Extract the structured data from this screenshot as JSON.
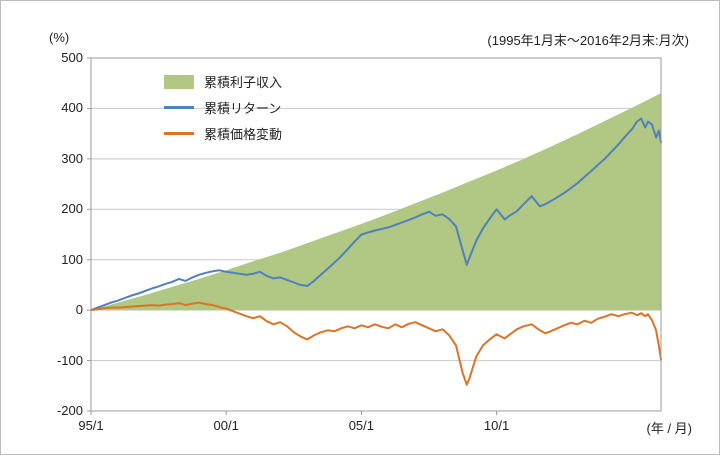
{
  "chart_data": {
    "type": "area+line",
    "title": "",
    "annotation": "(1995年1月末～2016年2月末:月次)",
    "ylabel": "(%)",
    "xlabel": "(年 / 月)",
    "ylim": [
      -200,
      500
    ],
    "xlim": [
      0,
      21.083
    ],
    "x_unit": "years since 1995/1 (monthly series)",
    "grid": true,
    "legend_position": "inside-top-left",
    "yticks": [
      500,
      400,
      300,
      200,
      100,
      0,
      -100,
      -200
    ],
    "xticks": [
      {
        "t": 0,
        "label": "95/1"
      },
      {
        "t": 5,
        "label": "00/1"
      },
      {
        "t": 10,
        "label": "05/1"
      },
      {
        "t": 15,
        "label": "10/1"
      }
    ],
    "colors": {
      "grid": "#c9c9c9",
      "axis": "#9b9b9b",
      "text": "#222222",
      "area_green": "#b0c884",
      "line_blue": "#4f81bd",
      "line_orange": "#db7426"
    },
    "series": [
      {
        "name": "累積利子収入",
        "type": "area",
        "color": "#b0c884",
        "points": [
          [
            0,
            0
          ],
          [
            1,
            15
          ],
          [
            2,
            30
          ],
          [
            3,
            46
          ],
          [
            4,
            62
          ],
          [
            5,
            79
          ],
          [
            6,
            97
          ],
          [
            7,
            114
          ],
          [
            8,
            133
          ],
          [
            9,
            152
          ],
          [
            10,
            171
          ],
          [
            11,
            191
          ],
          [
            12,
            212
          ],
          [
            13,
            233
          ],
          [
            14,
            255
          ],
          [
            15,
            277
          ],
          [
            16,
            300
          ],
          [
            17,
            324
          ],
          [
            18,
            349
          ],
          [
            19,
            375
          ],
          [
            20,
            401
          ],
          [
            21,
            428
          ],
          [
            21.083,
            430
          ]
        ]
      },
      {
        "name": "累積リターン",
        "type": "line",
        "color": "#4f81bd",
        "points": [
          [
            0,
            0
          ],
          [
            0.25,
            5
          ],
          [
            0.5,
            10
          ],
          [
            0.75,
            15
          ],
          [
            1,
            19
          ],
          [
            1.25,
            24
          ],
          [
            1.5,
            29
          ],
          [
            1.75,
            33
          ],
          [
            2,
            38
          ],
          [
            2.25,
            43
          ],
          [
            2.5,
            47
          ],
          [
            2.75,
            52
          ],
          [
            3,
            56
          ],
          [
            3.25,
            62
          ],
          [
            3.5,
            58
          ],
          [
            3.75,
            65
          ],
          [
            4,
            70
          ],
          [
            4.25,
            74
          ],
          [
            4.5,
            77
          ],
          [
            4.75,
            79
          ],
          [
            5,
            76
          ],
          [
            5.25,
            74
          ],
          [
            5.5,
            72
          ],
          [
            5.75,
            70
          ],
          [
            6,
            72
          ],
          [
            6.25,
            76
          ],
          [
            6.5,
            68
          ],
          [
            6.75,
            63
          ],
          [
            7,
            65
          ],
          [
            7.25,
            60
          ],
          [
            7.5,
            55
          ],
          [
            7.75,
            50
          ],
          [
            8,
            48
          ],
          [
            8.25,
            58
          ],
          [
            8.5,
            70
          ],
          [
            8.75,
            82
          ],
          [
            9,
            94
          ],
          [
            9.25,
            107
          ],
          [
            9.5,
            121
          ],
          [
            9.75,
            136
          ],
          [
            10,
            150
          ],
          [
            10.25,
            154
          ],
          [
            10.5,
            158
          ],
          [
            10.75,
            161
          ],
          [
            11,
            164
          ],
          [
            11.25,
            169
          ],
          [
            11.5,
            174
          ],
          [
            11.75,
            179
          ],
          [
            12,
            184
          ],
          [
            12.25,
            190
          ],
          [
            12.5,
            195
          ],
          [
            12.75,
            187
          ],
          [
            13,
            190
          ],
          [
            13.25,
            181
          ],
          [
            13.5,
            166
          ],
          [
            13.75,
            118
          ],
          [
            13.9,
            90
          ],
          [
            14,
            104
          ],
          [
            14.25,
            138
          ],
          [
            14.5,
            162
          ],
          [
            14.75,
            182
          ],
          [
            15,
            200
          ],
          [
            15.3,
            180
          ],
          [
            15.5,
            188
          ],
          [
            15.75,
            196
          ],
          [
            16,
            210
          ],
          [
            16.3,
            226
          ],
          [
            16.6,
            206
          ],
          [
            16.8,
            210
          ],
          [
            17,
            216
          ],
          [
            17.25,
            224
          ],
          [
            17.5,
            232
          ],
          [
            17.75,
            242
          ],
          [
            18,
            252
          ],
          [
            18.25,
            264
          ],
          [
            18.5,
            276
          ],
          [
            18.75,
            288
          ],
          [
            19,
            300
          ],
          [
            19.25,
            314
          ],
          [
            19.5,
            328
          ],
          [
            19.75,
            344
          ],
          [
            20,
            358
          ],
          [
            20.2,
            374
          ],
          [
            20.35,
            380
          ],
          [
            20.5,
            362
          ],
          [
            20.6,
            374
          ],
          [
            20.75,
            368
          ],
          [
            20.9,
            342
          ],
          [
            21,
            356
          ],
          [
            21.083,
            333
          ]
        ]
      },
      {
        "name": "累積価格変動",
        "type": "line",
        "color": "#db7426",
        "points": [
          [
            0,
            0
          ],
          [
            0.25,
            2
          ],
          [
            0.5,
            4
          ],
          [
            0.75,
            5
          ],
          [
            1,
            5
          ],
          [
            1.25,
            6
          ],
          [
            1.5,
            7
          ],
          [
            1.75,
            8
          ],
          [
            2,
            9
          ],
          [
            2.25,
            10
          ],
          [
            2.5,
            9
          ],
          [
            2.75,
            11
          ],
          [
            3,
            12
          ],
          [
            3.25,
            14
          ],
          [
            3.5,
            10
          ],
          [
            3.75,
            13
          ],
          [
            4,
            15
          ],
          [
            4.25,
            12
          ],
          [
            4.5,
            10
          ],
          [
            4.75,
            6
          ],
          [
            5,
            3
          ],
          [
            5.25,
            -2
          ],
          [
            5.5,
            -7
          ],
          [
            5.75,
            -12
          ],
          [
            6,
            -16
          ],
          [
            6.25,
            -12
          ],
          [
            6.5,
            -22
          ],
          [
            6.75,
            -28
          ],
          [
            7,
            -24
          ],
          [
            7.25,
            -32
          ],
          [
            7.5,
            -44
          ],
          [
            7.75,
            -52
          ],
          [
            8,
            -58
          ],
          [
            8.25,
            -50
          ],
          [
            8.5,
            -44
          ],
          [
            8.75,
            -40
          ],
          [
            9,
            -42
          ],
          [
            9.25,
            -36
          ],
          [
            9.5,
            -32
          ],
          [
            9.75,
            -36
          ],
          [
            10,
            -30
          ],
          [
            10.25,
            -34
          ],
          [
            10.5,
            -28
          ],
          [
            10.75,
            -33
          ],
          [
            11,
            -36
          ],
          [
            11.25,
            -28
          ],
          [
            11.5,
            -34
          ],
          [
            11.75,
            -27
          ],
          [
            12,
            -24
          ],
          [
            12.25,
            -30
          ],
          [
            12.5,
            -36
          ],
          [
            12.75,
            -42
          ],
          [
            13,
            -38
          ],
          [
            13.25,
            -50
          ],
          [
            13.5,
            -70
          ],
          [
            13.75,
            -125
          ],
          [
            13.9,
            -148
          ],
          [
            14,
            -135
          ],
          [
            14.25,
            -92
          ],
          [
            14.5,
            -70
          ],
          [
            14.75,
            -58
          ],
          [
            15,
            -48
          ],
          [
            15.3,
            -56
          ],
          [
            15.5,
            -48
          ],
          [
            15.75,
            -38
          ],
          [
            16,
            -32
          ],
          [
            16.3,
            -28
          ],
          [
            16.6,
            -40
          ],
          [
            16.8,
            -46
          ],
          [
            17,
            -42
          ],
          [
            17.25,
            -36
          ],
          [
            17.5,
            -30
          ],
          [
            17.75,
            -25
          ],
          [
            18,
            -28
          ],
          [
            18.25,
            -21
          ],
          [
            18.5,
            -25
          ],
          [
            18.75,
            -17
          ],
          [
            19,
            -13
          ],
          [
            19.25,
            -8
          ],
          [
            19.5,
            -12
          ],
          [
            19.75,
            -8
          ],
          [
            20,
            -5
          ],
          [
            20.2,
            -10
          ],
          [
            20.35,
            -6
          ],
          [
            20.5,
            -12
          ],
          [
            20.6,
            -8
          ],
          [
            20.75,
            -20
          ],
          [
            20.9,
            -40
          ],
          [
            21,
            -70
          ],
          [
            21.083,
            -98
          ]
        ]
      }
    ]
  }
}
